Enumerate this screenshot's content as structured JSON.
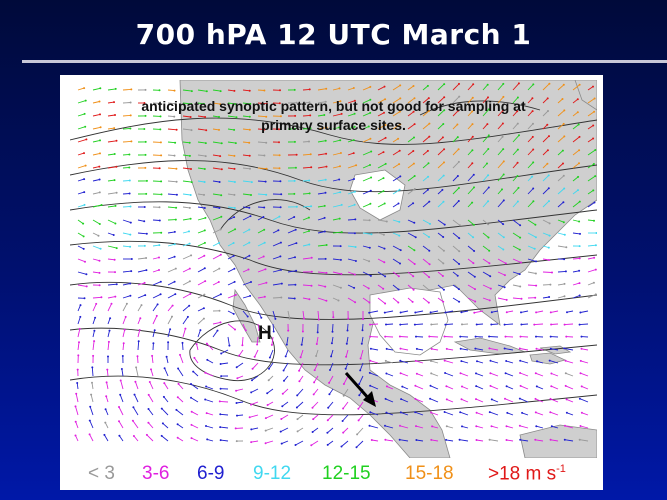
{
  "title": "700 hPA 12 UTC March 1",
  "annotation": {
    "line1": "anticipated synoptic pattern, but not good for sampling at",
    "line2": "primary surface sites."
  },
  "high_label": "H",
  "legend": {
    "items": [
      {
        "label": "< 3",
        "color": "#999999"
      },
      {
        "label": "3-6",
        "color": "#e020e0"
      },
      {
        "label": "6-9",
        "color": "#2020d0"
      },
      {
        "label": "9-12",
        "color": "#40d8f0"
      },
      {
        "label": "12-15",
        "color": "#20d020"
      },
      {
        "label": "15-18",
        "color": "#f09018"
      },
      {
        "label": ">18 m s",
        "color": "#e01818",
        "superscript": "-1"
      }
    ]
  },
  "colors": {
    "background_top": "#000a3a",
    "background_bottom": "#0018a8",
    "land": "#cfcfcf",
    "contour": "#333333"
  },
  "icons": {
    "storm_arrow": "black-arrow-southeast-icon"
  }
}
